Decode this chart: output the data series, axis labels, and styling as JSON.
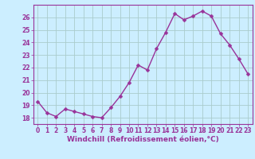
{
  "x": [
    0,
    1,
    2,
    3,
    4,
    5,
    6,
    7,
    8,
    9,
    10,
    11,
    12,
    13,
    14,
    15,
    16,
    17,
    18,
    19,
    20,
    21,
    22,
    23
  ],
  "y": [
    19.3,
    18.4,
    18.1,
    18.7,
    18.5,
    18.3,
    18.1,
    18.0,
    18.8,
    19.7,
    20.8,
    22.2,
    21.8,
    23.5,
    24.8,
    26.3,
    25.8,
    26.1,
    26.5,
    26.1,
    24.7,
    23.8,
    22.7,
    21.5
  ],
  "line_color": "#993399",
  "marker_color": "#993399",
  "bg_color": "#cceeff",
  "grid_color": "#aacccc",
  "xlabel": "Windchill (Refroidissement éolien,°C)",
  "xlabel_color": "#993399",
  "xlim": [
    -0.5,
    23.5
  ],
  "ylim": [
    17.5,
    27.0
  ],
  "yticks": [
    18,
    19,
    20,
    21,
    22,
    23,
    24,
    25,
    26
  ],
  "xtick_labels": [
    "0",
    "1",
    "2",
    "3",
    "4",
    "5",
    "6",
    "7",
    "8",
    "9",
    "10",
    "11",
    "12",
    "13",
    "14",
    "15",
    "16",
    "17",
    "18",
    "19",
    "20",
    "21",
    "22",
    "23"
  ],
  "tick_color": "#993399",
  "tick_fontsize": 5.5,
  "xlabel_fontsize": 6.5,
  "line_width": 1.0,
  "marker_size": 2.5,
  "spine_color": "#993399"
}
